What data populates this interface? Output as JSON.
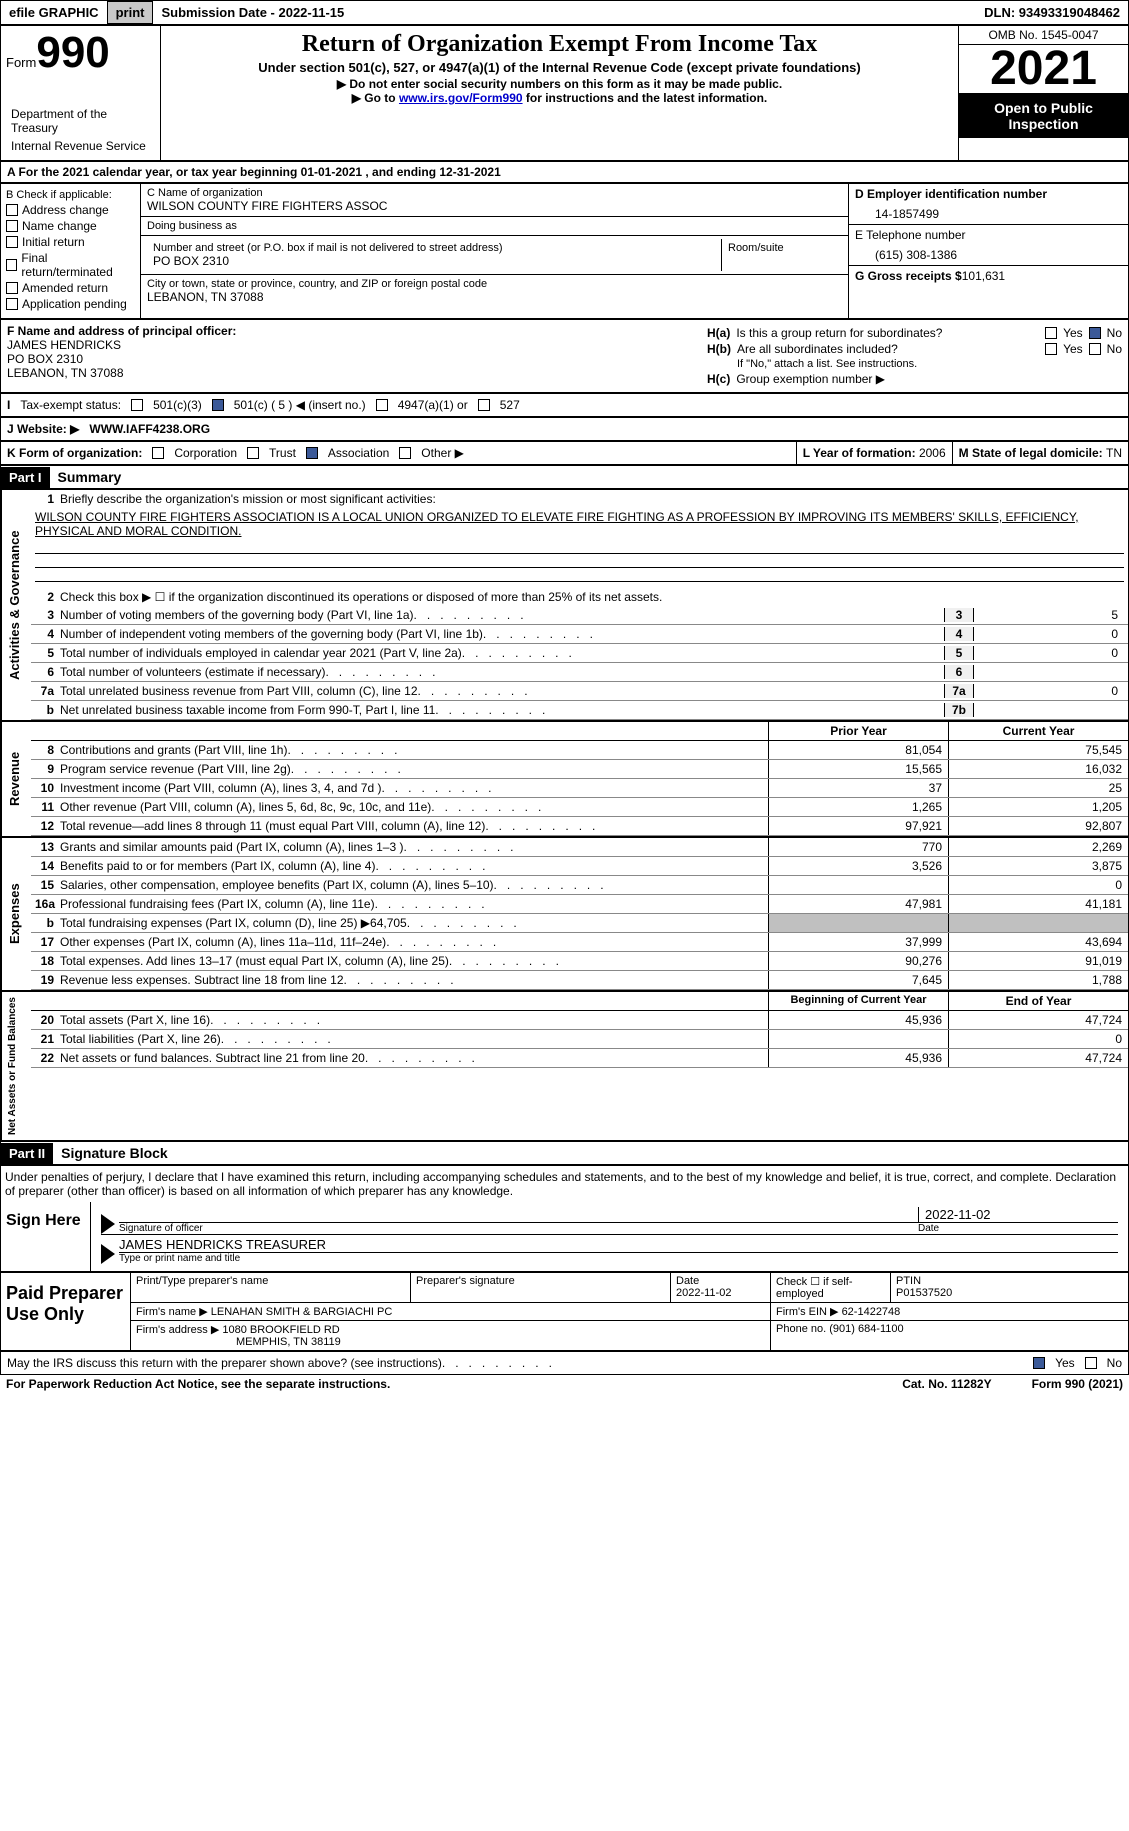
{
  "topbar": {
    "efile_label": "efile GRAPHIC",
    "print_btn": "print",
    "submission_label": "Submission Date - 2022-11-15",
    "dln_label": "DLN: 93493319048462"
  },
  "header": {
    "form_word": "Form",
    "form_num": "990",
    "dept": "Department of the Treasury",
    "irs": "Internal Revenue Service",
    "title": "Return of Organization Exempt From Income Tax",
    "subtitle1": "Under section 501(c), 527, or 4947(a)(1) of the Internal Revenue Code (except private foundations)",
    "subtitle2": "▶ Do not enter social security numbers on this form as it may be made public.",
    "subtitle3_pre": "▶ Go to ",
    "subtitle3_link": "www.irs.gov/Form990",
    "subtitle3_post": " for instructions and the latest information.",
    "omb": "OMB No. 1545-0047",
    "year": "2021",
    "open_pub": "Open to Public Inspection"
  },
  "a_line": "A For the 2021 calendar year, or tax year beginning 01-01-2021    , and ending 12-31-2021",
  "b_checks": {
    "label": "B Check if applicable:",
    "addr": "Address change",
    "name": "Name change",
    "init": "Initial return",
    "final": "Final return/terminated",
    "amend": "Amended return",
    "app": "Application pending"
  },
  "c_section": {
    "c_label": "C Name of organization",
    "org": "WILSON COUNTY FIRE FIGHTERS ASSOC",
    "dba_label": "Doing business as",
    "dba": "",
    "addr_label": "Number and street (or P.O. box if mail is not delivered to street address)",
    "room_label": "Room/suite",
    "addr": "PO BOX 2310",
    "city_label": "City or town, state or province, country, and ZIP or foreign postal code",
    "city": "LEBANON, TN  37088"
  },
  "d_section": {
    "d_label": "D Employer identification number",
    "ein": "14-1857499",
    "e_label": "E Telephone number",
    "phone": "(615) 308-1386",
    "g_label": "G Gross receipts $",
    "gross": "101,631"
  },
  "f_section": {
    "f_label": "F Name and address of principal officer:",
    "name": "JAMES HENDRICKS",
    "addr1": "PO BOX 2310",
    "addr2": "LEBANON, TN  37088",
    "ha": "Is this a group return for subordinates?",
    "hb": "Are all subordinates included?",
    "hb_note": "If \"No,\" attach a list. See instructions.",
    "hc": "Group exemption number ▶",
    "yes": "Yes",
    "no": "No"
  },
  "i_row": {
    "label": "Tax-exempt status:",
    "c3": "501(c)(3)",
    "c5": "501(c) ( 5 ) ◀ (insert no.)",
    "a1": "4947(a)(1) or",
    "s527": "527"
  },
  "j_row": {
    "label": "J  Website: ▶",
    "url": "WWW.IAFF4238.ORG"
  },
  "k_row": {
    "label": "K Form of organization:",
    "corp": "Corporation",
    "trust": "Trust",
    "assoc": "Association",
    "other": "Other ▶",
    "l_label": "L Year of formation: ",
    "l_val": "2006",
    "m_label": "M State of legal domicile: ",
    "m_val": "TN"
  },
  "part1": {
    "header": "Part I",
    "title": "Summary"
  },
  "gov": {
    "label": "Activities & Governance",
    "l1a": "Briefly describe the organization's mission or most significant activities:",
    "l1b": "WILSON COUNTY FIRE FIGHTERS ASSOCIATION IS A LOCAL UNION ORGANIZED TO ELEVATE FIRE FIGHTING AS A PROFESSION BY IMPROVING ITS MEMBERS' SKILLS, EFFICIENCY, PHYSICAL AND MORAL CONDITION.",
    "l2": "Check this box ▶ ☐  if the organization discontinued its operations or disposed of more than 25% of its net assets.",
    "l3": "Number of voting members of the governing body (Part VI, line 1a)",
    "l3v": "5",
    "l4": "Number of independent voting members of the governing body (Part VI, line 1b)",
    "l4v": "0",
    "l5": "Total number of individuals employed in calendar year 2021 (Part V, line 2a)",
    "l5v": "0",
    "l6": "Total number of volunteers (estimate if necessary)",
    "l6v": "",
    "l7a": "Total unrelated business revenue from Part VIII, column (C), line 12",
    "l7av": "0",
    "l7b": "Net unrelated business taxable income from Form 990-T, Part I, line 11",
    "l7bv": ""
  },
  "col_headers": {
    "prior": "Prior Year",
    "curr": "Current Year",
    "beg": "Beginning of Current Year",
    "end": "End of Year"
  },
  "rev": {
    "label": "Revenue",
    "rows": [
      {
        "n": "8",
        "t": "Contributions and grants (Part VIII, line 1h)",
        "p": "81,054",
        "c": "75,545"
      },
      {
        "n": "9",
        "t": "Program service revenue (Part VIII, line 2g)",
        "p": "15,565",
        "c": "16,032"
      },
      {
        "n": "10",
        "t": "Investment income (Part VIII, column (A), lines 3, 4, and 7d )",
        "p": "37",
        "c": "25"
      },
      {
        "n": "11",
        "t": "Other revenue (Part VIII, column (A), lines 5, 6d, 8c, 9c, 10c, and 11e)",
        "p": "1,265",
        "c": "1,205"
      },
      {
        "n": "12",
        "t": "Total revenue—add lines 8 through 11 (must equal Part VIII, column (A), line 12)",
        "p": "97,921",
        "c": "92,807"
      }
    ]
  },
  "exp": {
    "label": "Expenses",
    "rows": [
      {
        "n": "13",
        "t": "Grants and similar amounts paid (Part IX, column (A), lines 1–3 )",
        "p": "770",
        "c": "2,269"
      },
      {
        "n": "14",
        "t": "Benefits paid to or for members (Part IX, column (A), line 4)",
        "p": "3,526",
        "c": "3,875"
      },
      {
        "n": "15",
        "t": "Salaries, other compensation, employee benefits (Part IX, column (A), lines 5–10)",
        "p": "",
        "c": "0"
      },
      {
        "n": "16a",
        "t": "Professional fundraising fees (Part IX, column (A), line 11e)",
        "p": "47,981",
        "c": "41,181"
      },
      {
        "n": "b",
        "t": "Total fundraising expenses (Part IX, column (D), line 25) ▶64,705",
        "p": "SHADE",
        "c": "SHADE"
      },
      {
        "n": "17",
        "t": "Other expenses (Part IX, column (A), lines 11a–11d, 11f–24e)",
        "p": "37,999",
        "c": "43,694"
      },
      {
        "n": "18",
        "t": "Total expenses. Add lines 13–17 (must equal Part IX, column (A), line 25)",
        "p": "90,276",
        "c": "91,019"
      },
      {
        "n": "19",
        "t": "Revenue less expenses. Subtract line 18 from line 12",
        "p": "7,645",
        "c": "1,788"
      }
    ]
  },
  "net": {
    "label": "Net Assets or Fund Balances",
    "rows": [
      {
        "n": "20",
        "t": "Total assets (Part X, line 16)",
        "p": "45,936",
        "c": "47,724"
      },
      {
        "n": "21",
        "t": "Total liabilities (Part X, line 26)",
        "p": "",
        "c": "0"
      },
      {
        "n": "22",
        "t": "Net assets or fund balances. Subtract line 21 from line 20",
        "p": "45,936",
        "c": "47,724"
      }
    ]
  },
  "part2": {
    "header": "Part II",
    "title": "Signature Block"
  },
  "sig": {
    "penalty": "Under penalties of perjury, I declare that I have examined this return, including accompanying schedules and statements, and to the best of my knowledge and belief, it is true, correct, and complete. Declaration of preparer (other than officer) is based on all information of which preparer has any knowledge.",
    "sign_here": "Sign Here",
    "sig_of": "Signature of officer",
    "date": "Date",
    "date_val": "2022-11-02",
    "name": "JAMES HENDRICKS  TREASURER",
    "name_sub": "Type or print name and title"
  },
  "prep": {
    "label": "Paid Preparer Use Only",
    "print": "Print/Type preparer's name",
    "sig": "Preparer's signature",
    "date_l": "Date",
    "date_v": "2022-11-02",
    "check_l": "Check ☐ if self-employed",
    "ptin_l": "PTIN",
    "ptin_v": "P01537520",
    "firm_l": "Firm's name    ▶",
    "firm_v": "LENAHAN SMITH & BARGIACHI PC",
    "ein_l": "Firm's EIN ▶",
    "ein_v": "62-1422748",
    "addr_l": "Firm's address ▶",
    "addr_v1": "1080 BROOKFIELD RD",
    "addr_v2": "MEMPHIS, TN  38119",
    "phone_l": "Phone no.",
    "phone_v": "(901) 684-1100"
  },
  "footer": {
    "discuss": "May the IRS discuss this return with the preparer shown above? (see instructions)",
    "yes": "Yes",
    "no": "No"
  },
  "bottom": {
    "paperwork": "For Paperwork Reduction Act Notice, see the separate instructions.",
    "cat": "Cat. No. 11282Y",
    "form": "Form 990 (2021)"
  }
}
